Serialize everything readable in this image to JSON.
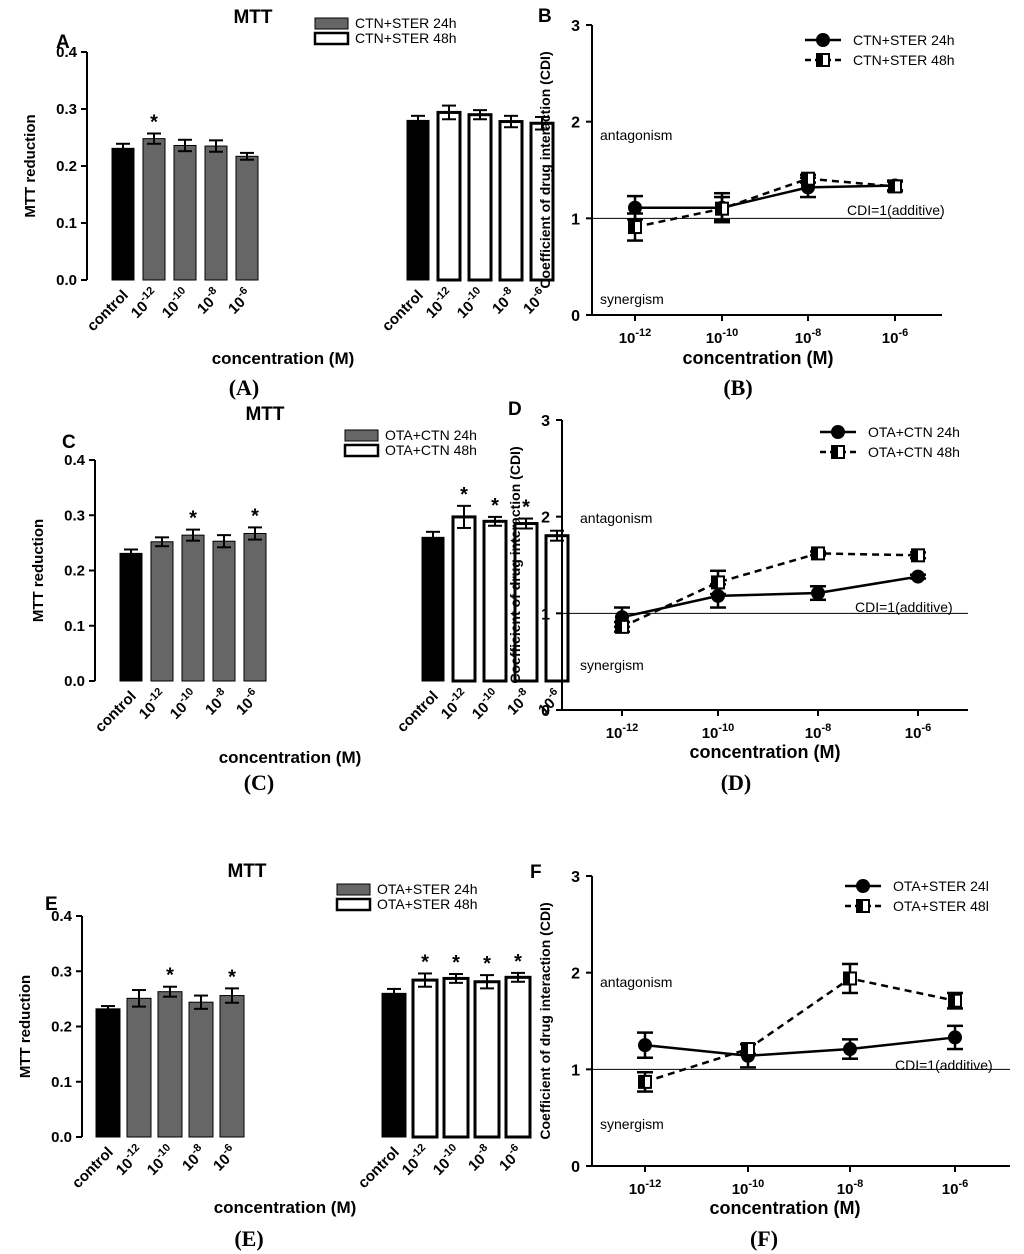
{
  "chart_data": [
    {
      "panel": "A",
      "caption": "(A)",
      "type": "bar",
      "title": "MTT",
      "xlabel": "concentration (M)",
      "ylabel": "MTT reduction",
      "ylim": [
        0,
        0.4
      ],
      "yticks": [
        "0.0",
        "0.1",
        "0.2",
        "0.3",
        "0.4"
      ],
      "categories": [
        "control",
        "10^-12",
        "10^-10",
        "10^-8",
        "10^-6"
      ],
      "series": [
        {
          "name": "CTN+STER 24h",
          "values": [
            0.231,
            0.248,
            0.236,
            0.235,
            0.217
          ],
          "errors": [
            0.008,
            0.009,
            0.01,
            0.01,
            0.006
          ],
          "stars": [
            false,
            true,
            false,
            false,
            false
          ]
        },
        {
          "name": "CTN+STER 48h",
          "values": [
            0.28,
            0.294,
            0.29,
            0.278,
            0.275
          ],
          "errors": [
            0.008,
            0.012,
            0.008,
            0.01,
            0.011
          ],
          "stars": [
            false,
            false,
            false,
            false,
            false
          ]
        }
      ]
    },
    {
      "panel": "B",
      "caption": "(B)",
      "type": "line",
      "xlabel": "concentration (M)",
      "ylabel": "Coefficient of drug interaction (CDI)",
      "ylim": [
        0,
        3
      ],
      "yticks": [
        "0",
        "1",
        "2",
        "3"
      ],
      "categories": [
        "10^-12",
        "10^-10",
        "10^-8",
        "10^-6"
      ],
      "annotations": {
        "upper": "antagonism",
        "lower": "synergism",
        "ref": "CDI=1(additive)"
      },
      "series": [
        {
          "name": "CTN+STER 24h",
          "values": [
            1.11,
            1.11,
            1.32,
            1.34
          ],
          "errors": [
            0.12,
            0.15,
            0.1,
            0.05
          ]
        },
        {
          "name": "CTN+STER 48h",
          "values": [
            0.91,
            1.1,
            1.41,
            1.33
          ],
          "errors": [
            0.14,
            0.12,
            0.04,
            0.05
          ]
        }
      ]
    },
    {
      "panel": "C",
      "caption": "(C)",
      "type": "bar",
      "title": "MTT",
      "xlabel": "concentration (M)",
      "ylabel": "MTT reduction",
      "ylim": [
        0,
        0.4
      ],
      "yticks": [
        "0.0",
        "0.1",
        "0.2",
        "0.3",
        "0.4"
      ],
      "categories": [
        "control",
        "10^-12",
        "10^-10",
        "10^-8",
        "10^-6"
      ],
      "series": [
        {
          "name": "OTA+CTN 24h",
          "values": [
            0.231,
            0.252,
            0.264,
            0.253,
            0.267
          ],
          "errors": [
            0.007,
            0.008,
            0.01,
            0.011,
            0.011
          ],
          "stars": [
            false,
            false,
            true,
            false,
            true
          ]
        },
        {
          "name": "OTA+CTN 48h",
          "values": [
            0.26,
            0.297,
            0.289,
            0.285,
            0.263
          ],
          "errors": [
            0.01,
            0.02,
            0.008,
            0.009,
            0.009
          ],
          "stars": [
            false,
            true,
            true,
            true,
            false
          ]
        }
      ]
    },
    {
      "panel": "D",
      "caption": "(D)",
      "type": "line",
      "xlabel": "concentration (M)",
      "ylabel": "Coefficient of drug interaction (CDI)",
      "ylim": [
        0,
        3
      ],
      "yticks": [
        "0",
        "1",
        "2",
        "3"
      ],
      "categories": [
        "10^-12",
        "10^-10",
        "10^-8",
        "10^-6"
      ],
      "annotations": {
        "upper": "antagonism",
        "lower": "synergism",
        "ref": "CDI=1(additive)"
      },
      "series": [
        {
          "name": "OTA+CTN 24h",
          "values": [
            0.96,
            1.18,
            1.21,
            1.38
          ],
          "errors": [
            0.1,
            0.12,
            0.07,
            0.02
          ]
        },
        {
          "name": "OTA+CTN 48h",
          "values": [
            0.86,
            1.32,
            1.62,
            1.6
          ],
          "errors": [
            0.05,
            0.12,
            0.02,
            0.03
          ]
        }
      ]
    },
    {
      "panel": "E",
      "caption": "(E)",
      "type": "bar",
      "title": "MTT",
      "xlabel": "concentration (M)",
      "ylabel": "MTT reduction",
      "ylim": [
        0,
        0.4
      ],
      "yticks": [
        "0.0",
        "0.1",
        "0.2",
        "0.3",
        "0.4"
      ],
      "categories": [
        "control",
        "10^-12",
        "10^-10",
        "10^-8",
        "10^-6"
      ],
      "series": [
        {
          "name": "OTA+STER 24h",
          "values": [
            0.232,
            0.251,
            0.263,
            0.244,
            0.256
          ],
          "errors": [
            0.005,
            0.015,
            0.009,
            0.012,
            0.013
          ],
          "stars": [
            false,
            false,
            true,
            false,
            true
          ]
        },
        {
          "name": "OTA+STER 48h",
          "values": [
            0.26,
            0.284,
            0.287,
            0.281,
            0.289
          ],
          "errors": [
            0.008,
            0.012,
            0.008,
            0.012,
            0.008
          ],
          "stars": [
            false,
            true,
            true,
            true,
            true
          ]
        }
      ]
    },
    {
      "panel": "F",
      "caption": "(F)",
      "type": "line",
      "xlabel": "concentration (M)",
      "ylabel": "Coefficient of drug interaction (CDI)",
      "ylim": [
        0,
        3
      ],
      "yticks": [
        "0",
        "1",
        "2",
        "3"
      ],
      "categories": [
        "10^-12",
        "10^-10",
        "10^-8",
        "10^-6"
      ],
      "annotations": {
        "upper": "antagonism",
        "lower": "synergism",
        "ref": "CDI=1(additive)"
      },
      "series": [
        {
          "name": "OTA+STER 24l",
          "values": [
            1.25,
            1.14,
            1.21,
            1.33
          ],
          "errors": [
            0.13,
            0.12,
            0.1,
            0.12
          ]
        },
        {
          "name": "OTA+STER 48l",
          "values": [
            0.87,
            1.21,
            1.94,
            1.71
          ],
          "errors": [
            0.1,
            0.05,
            0.15,
            0.08
          ]
        }
      ]
    }
  ]
}
